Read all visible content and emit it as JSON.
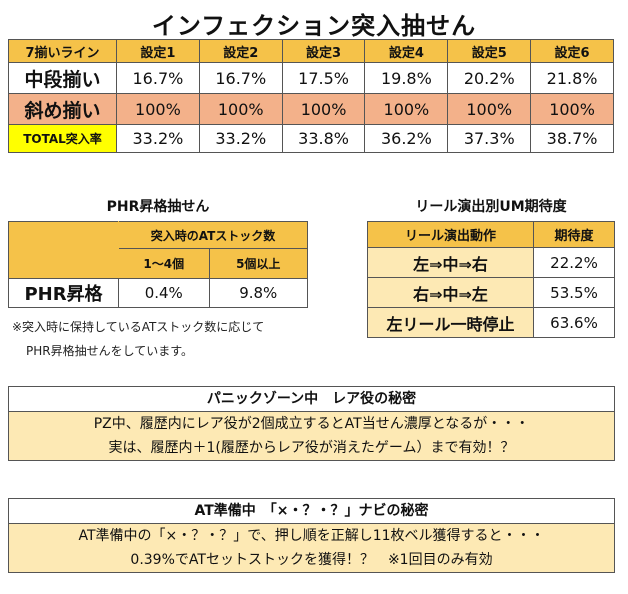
{
  "title": "インフェクション突入抽せん",
  "main_table": {
    "headers": [
      "7揃いライン",
      "設定1",
      "設定2",
      "設定3",
      "設定4",
      "設定5",
      "設定6"
    ],
    "rows": [
      {
        "label": "中段揃い",
        "values": [
          "16.7%",
          "16.7%",
          "17.5%",
          "19.8%",
          "20.2%",
          "21.8%"
        ]
      },
      {
        "label": "斜め揃い",
        "values": [
          "100%",
          "100%",
          "100%",
          "100%",
          "100%",
          "100%"
        ]
      },
      {
        "label": "TOTAL突入率",
        "values": [
          "33.2%",
          "33.2%",
          "33.8%",
          "36.2%",
          "37.3%",
          "38.7%"
        ]
      }
    ]
  },
  "phr": {
    "title": "PHR昇格抽せん",
    "group_header": "突入時のATストック数",
    "columns": [
      "1～4個",
      "5個以上"
    ],
    "row_label": "PHR昇格",
    "values": [
      "0.4%",
      "9.8%"
    ],
    "note_line1": "※突入時に保持しているATストック数に応じて",
    "note_line2": "PHR昇格抽せんをしています。"
  },
  "reel": {
    "title": "リール演出別UM期待度",
    "headers": [
      "リール演出動作",
      "期待度"
    ],
    "rows": [
      {
        "action": "左⇒中⇒右",
        "value": "22.2%"
      },
      {
        "action": "右⇒中⇒左",
        "value": "53.5%"
      },
      {
        "action": "左リール一時停止",
        "value": "63.6%"
      }
    ]
  },
  "box1": {
    "title": "パニックゾーン中　レア役の秘密",
    "line1": "PZ中、履歴内にレア役が2個成立するとAT当せん濃厚となるが・・・",
    "line2": "実は、履歴内＋1(履歴からレア役が消えたゲーム）まで有効！？"
  },
  "box2": {
    "title": "AT準備中　「×・？・？」ナビの秘密",
    "line1": "AT準備中の「×・？・？」で、押し順を正解し11枚ベル獲得すると・・・",
    "line2": "0.39%でATセットストックを獲得！？　※1回目のみ有効"
  }
}
